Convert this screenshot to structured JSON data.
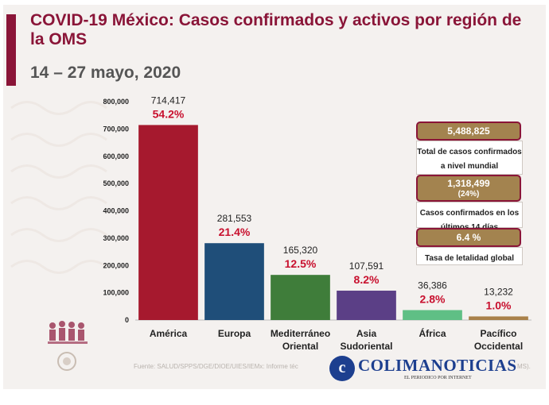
{
  "header": {
    "title": "COVID-19 México: Casos confirmados y activos por región de la OMS",
    "date_range": "14 – 27 mayo, 2020"
  },
  "chart_data": {
    "type": "bar",
    "title": "",
    "xlabel": "",
    "ylabel": "",
    "ylim": [
      0,
      800000
    ],
    "yticks": [
      "0",
      "100,000",
      "200,000",
      "300,000",
      "400,000",
      "500,000",
      "600,000",
      "700,000",
      "800,000"
    ],
    "grid": false,
    "categories": [
      "América",
      "Europa",
      "Mediterráneo Oriental",
      "Asia Sudoriental",
      "África",
      "Pacífico Occidental"
    ],
    "category_lines": [
      [
        "América"
      ],
      [
        "Europa"
      ],
      [
        "Mediterráneo",
        "Oriental"
      ],
      [
        "Asia",
        "Sudoriental"
      ],
      [
        "África"
      ],
      [
        "Pacífico",
        "Occidental"
      ]
    ],
    "values": [
      714417,
      281553,
      165320,
      107591,
      36386,
      13232
    ],
    "value_labels": [
      "714,417",
      "281,553",
      "165,320",
      "107,591",
      "36,386",
      "13,232"
    ],
    "percent_labels": [
      "54.2%",
      "21.4%",
      "12.5%",
      "8.2%",
      "2.8%",
      "1.0%"
    ],
    "colors": [
      "#a6192e",
      "#1f4e79",
      "#3f7d3a",
      "#5b3f86",
      "#5fbf85",
      "#a9814a"
    ]
  },
  "stats": {
    "total_cases": "5,488,825",
    "total_cases_label": "Total de casos confirmados a nivel mundial",
    "recent_cases": "1,318,499",
    "recent_cases_pct": "(24%)",
    "recent_cases_label": "Casos confirmados en los últimos 14 días",
    "lethality_rate": "6.4 %",
    "lethality_label": "Tasa de letalidad global"
  },
  "footer": {
    "source_start": "Fuente: SALUD/SPPS/DGE/DIOE/UIES/IEMx: Informe téc",
    "source_end": "MS).",
    "watermark_initial": "c",
    "watermark_name": "COLIMANOTICIAS",
    "watermark_tagline": "EL PERIODICO POR INTERNET"
  },
  "colors": {
    "brand": "#8a1538",
    "pill": "#a3834f",
    "percent": "#c8102e"
  }
}
